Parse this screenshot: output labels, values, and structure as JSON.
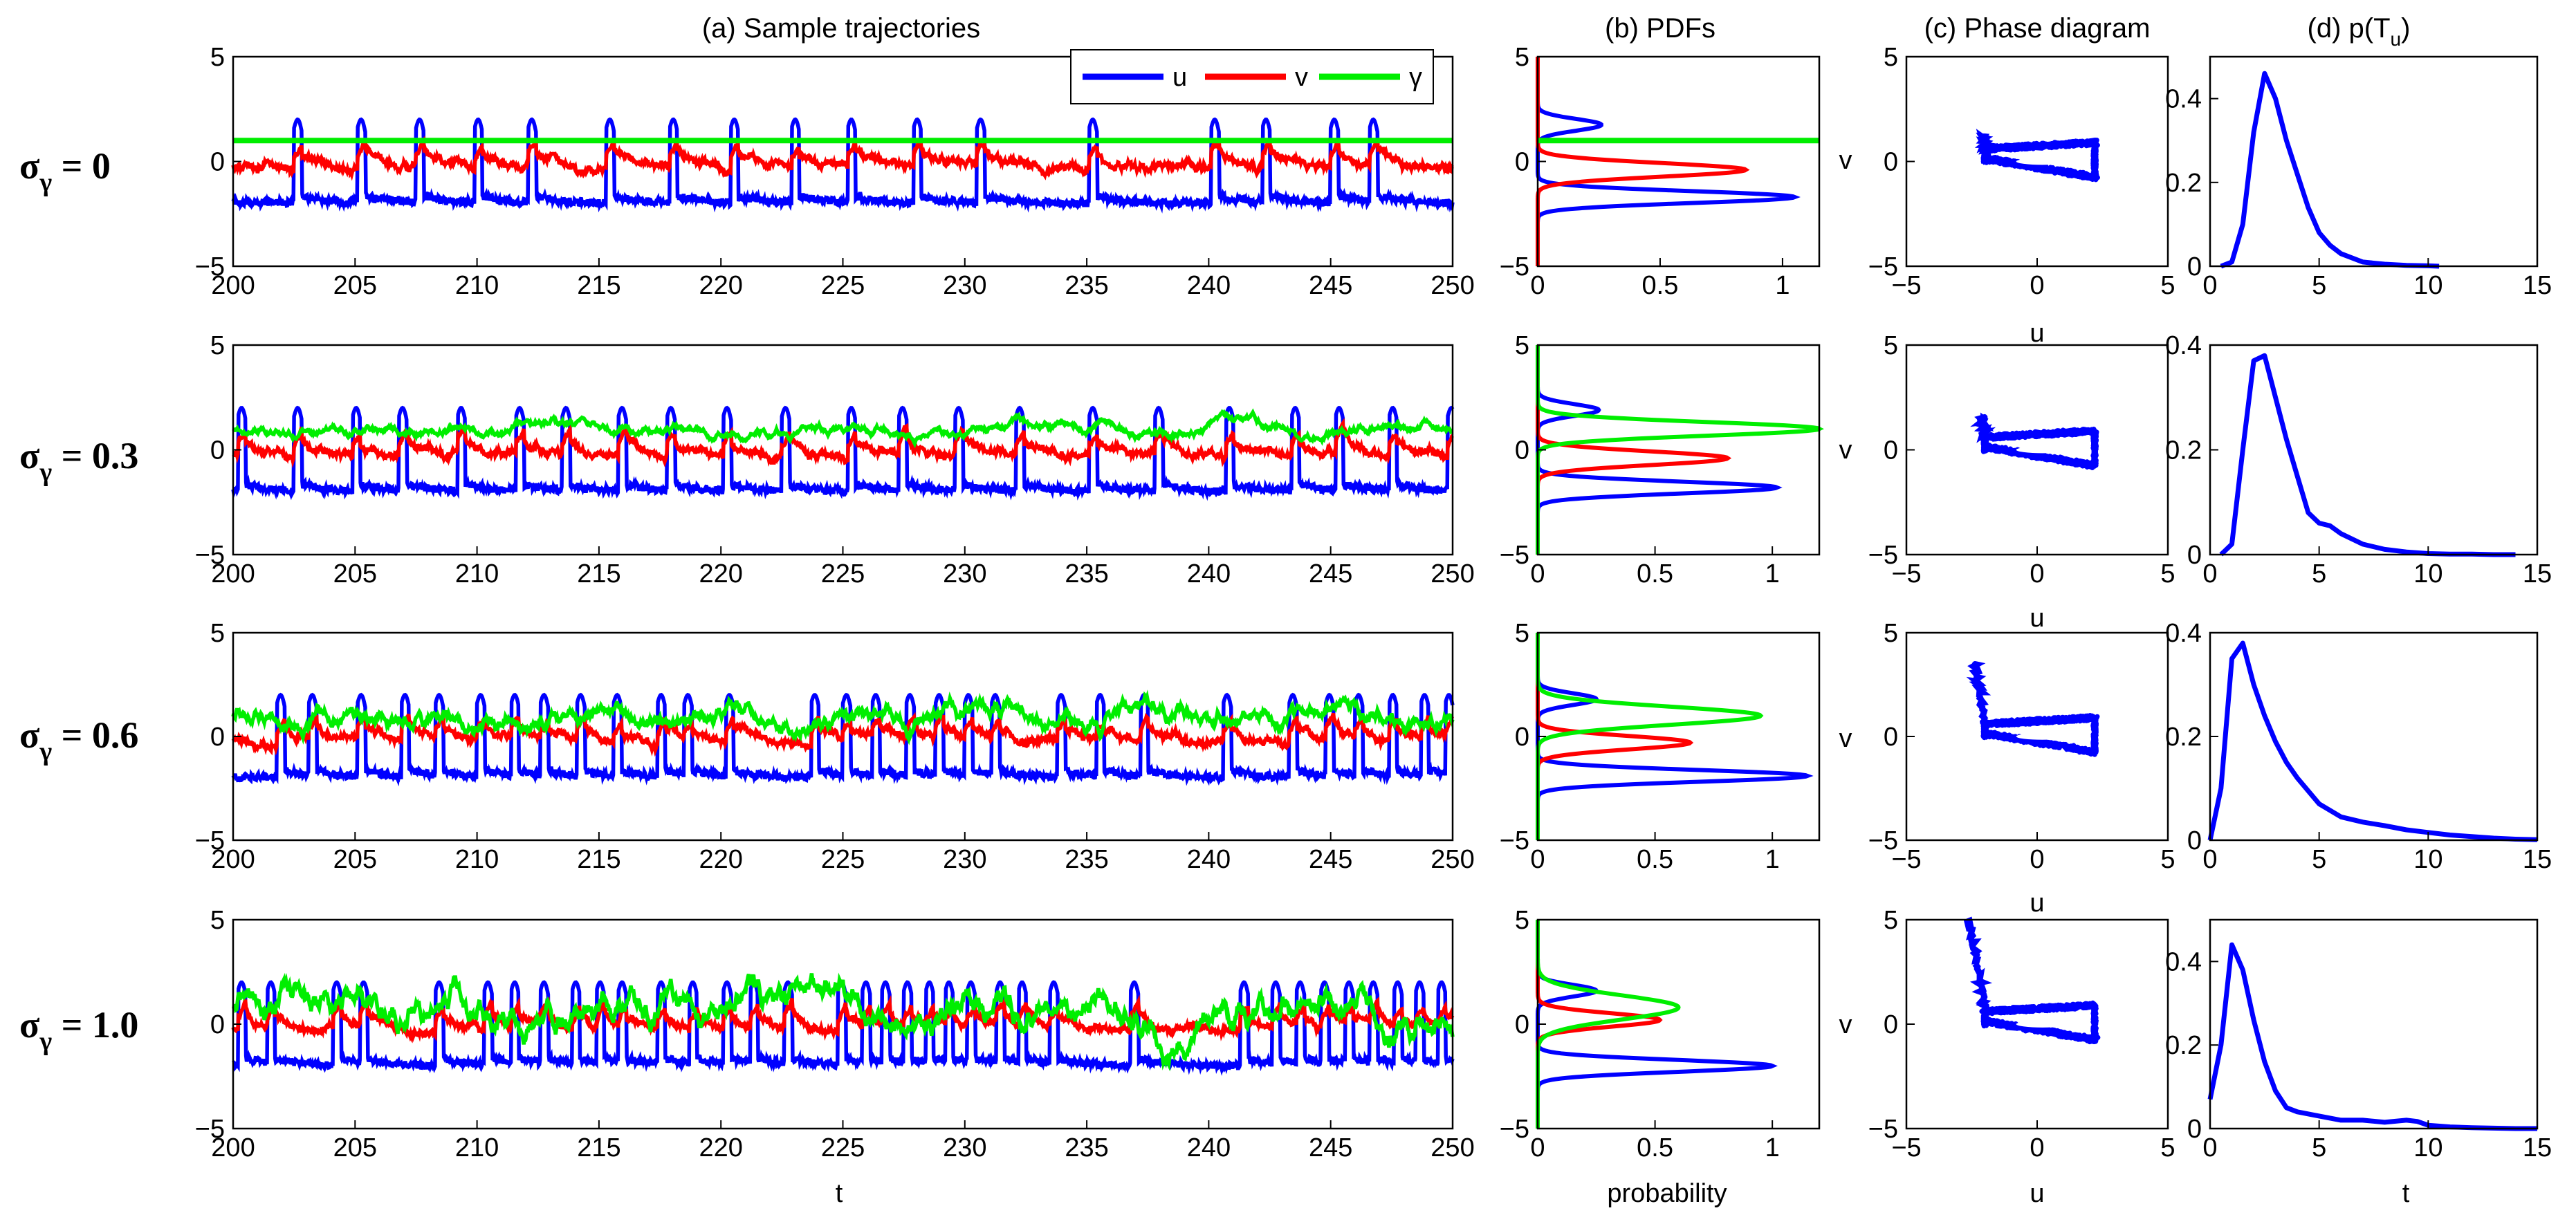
{
  "colors": {
    "u": "#0000ff",
    "v": "#ff0000",
    "gamma": "#00ee00",
    "axis": "#000000"
  },
  "legend": [
    {
      "key": "u",
      "label": "u"
    },
    {
      "key": "v",
      "label": "v"
    },
    {
      "key": "gamma",
      "label": "γ"
    }
  ],
  "column_titles": {
    "a": "(a)  Sample trajectories",
    "b": "(b)  PDFs",
    "c": "(c)  Phase diagram",
    "d_prefix": "(d)  p(T",
    "d_sub": "u",
    "d_suffix": ")"
  },
  "axis_labels": {
    "traj_x": "t",
    "pdf_x": "probability",
    "phase_x": "u",
    "phase_y": "v",
    "dist_x": "t"
  },
  "rows": [
    {
      "label_prefix": "σ",
      "label_sub": "γ",
      "label_value": " = 0",
      "sigma": 0.0
    },
    {
      "label_prefix": "σ",
      "label_sub": "γ",
      "label_value": " = 0.3",
      "sigma": 0.3
    },
    {
      "label_prefix": "σ",
      "label_sub": "γ",
      "label_value": " = 0.6",
      "sigma": 0.6
    },
    {
      "label_prefix": "σ",
      "label_sub": "γ",
      "label_value": " = 1.0",
      "sigma": 1.0
    }
  ],
  "chart_data": [
    {
      "panel": "a",
      "type": "line",
      "title": "(a)  Sample trajectories",
      "xlabel": "t",
      "ylabel": "",
      "xlim": [
        200,
        250
      ],
      "ylim": [
        -5,
        5
      ],
      "xticks": [
        "200",
        "205",
        "210",
        "215",
        "220",
        "225",
        "230",
        "235",
        "240",
        "245",
        "250"
      ],
      "yticks": [
        "-5",
        "0",
        "5"
      ],
      "series": [
        {
          "name": "u",
          "description": "spiking trajectory, baseline about -2, spikes to about +2"
        },
        {
          "name": "v",
          "description": "recovery variable oscillating around 0"
        },
        {
          "name": "γ",
          "description": "constant 1 for σ=0, noisier for larger σ"
        }
      ],
      "spikes_per_row": [
        [
          202.5,
          205.1,
          207.5,
          209.9,
          212.1,
          215.3,
          217.9,
          220.4,
          222.9,
          225.2,
          227.9,
          230.5,
          235.1,
          240.1,
          242.2,
          245.0,
          246.6
        ],
        [
          200.2,
          202.5,
          204.9,
          206.8,
          209.2,
          211.6,
          213.5,
          215.8,
          217.8,
          220.1,
          222.5,
          225.2,
          227.3,
          229.6,
          232.1,
          235.1,
          237.8,
          240.7,
          243.4,
          245.2,
          247.4,
          249.8
        ],
        [
          201.8,
          203.1,
          205.1,
          206.9,
          208.3,
          210.0,
          211.4,
          212.6,
          214.1,
          215.6,
          217.4,
          218.5,
          220.2,
          223.7,
          225.0,
          226.2,
          227.6,
          228.8,
          230.0,
          231.1,
          233.8,
          235.4,
          237.2,
          240.6,
          243.3,
          244.8,
          246.0,
          247.4,
          248.7,
          249.7
        ],
        [
          200.2,
          201.4,
          204.1,
          205.2,
          208.3,
          210.3,
          211.4,
          212.6,
          213.9,
          214.9,
          215.8,
          217.4,
          218.7,
          220.1,
          221.2,
          222.6,
          224.8,
          225.8,
          226.6,
          227.5,
          228.4,
          229.2,
          230.1,
          231.3,
          232.2,
          233.5,
          236.8,
          241.3,
          242.6,
          243.6,
          244.6,
          245.6,
          246.6,
          247.6,
          248.5,
          249.4
        ]
      ]
    },
    {
      "panel": "b",
      "type": "line",
      "title": "(b)  PDFs",
      "xlabel": "probability",
      "ylim": [
        -5,
        5
      ],
      "yticks": [
        "-5",
        "0",
        "5"
      ],
      "xlim_per_row": [
        [
          0,
          1.15
        ],
        [
          0,
          1.2
        ],
        [
          0,
          1.2
        ],
        [
          0,
          1.2
        ]
      ],
      "xticks": [
        "0",
        "0.5",
        "1"
      ],
      "rows": [
        {
          "u_peaks": [
            {
              "y": -1.7,
              "p": 1.05
            },
            {
              "y": 1.75,
              "p": 0.26
            }
          ],
          "v_peak": {
            "y": -0.4,
            "p": 0.85
          },
          "gamma_peak": {
            "y": 1.0,
            "p": 1.15
          }
        },
        {
          "u_peaks": [
            {
              "y": -1.8,
              "p": 1.02
            },
            {
              "y": 1.9,
              "p": 0.26
            }
          ],
          "v_peak": {
            "y": -0.4,
            "p": 0.81
          },
          "gamma_peak": {
            "y": 1.0,
            "p": 1.2
          }
        },
        {
          "u_peaks": [
            {
              "y": -1.9,
              "p": 1.15
            },
            {
              "y": 1.8,
              "p": 0.25
            }
          ],
          "v_peak": {
            "y": -0.3,
            "p": 0.65
          },
          "gamma_peak": {
            "y": 1.0,
            "p": 0.95
          }
        },
        {
          "u_peaks": [
            {
              "y": -2.0,
              "p": 1.0
            },
            {
              "y": 1.6,
              "p": 0.25
            }
          ],
          "v_peak": {
            "y": 0.2,
            "p": 0.52
          },
          "gamma_peak": {
            "y": 0.8,
            "p": 0.6
          }
        }
      ]
    },
    {
      "panel": "c",
      "type": "scatter",
      "title": "(c)  Phase diagram",
      "xlabel": "u",
      "ylabel": "v",
      "xlim": [
        -5,
        5
      ],
      "ylim": [
        -5,
        5
      ],
      "xticks": [
        "-5",
        "0",
        "5"
      ],
      "yticks": [
        "-5",
        "0",
        "5"
      ],
      "rows": [
        {
          "left_top_v": 1.2
        },
        {
          "left_top_v": 1.5
        },
        {
          "left_top_v": 3.5
        },
        {
          "left_top_v": 5.0
        }
      ]
    },
    {
      "panel": "d",
      "type": "line",
      "title": "(d)  p(T_u)",
      "xlabel": "t",
      "xlim": [
        0,
        15
      ],
      "xticks": [
        "0",
        "5",
        "10",
        "15"
      ],
      "rows": [
        {
          "ylim": [
            0,
            0.5
          ],
          "yticks": [
            "0",
            "0.2",
            "0.4"
          ],
          "x": [
            0.5,
            1,
            1.5,
            2,
            2.5,
            3,
            3.5,
            4,
            4.5,
            5,
            5.5,
            6,
            7,
            8,
            9,
            10,
            10.5
          ],
          "y": [
            0,
            0.01,
            0.1,
            0.32,
            0.46,
            0.4,
            0.3,
            0.22,
            0.14,
            0.08,
            0.05,
            0.03,
            0.01,
            0.005,
            0.002,
            0.001,
            0
          ]
        },
        {
          "ylim": [
            0,
            0.4
          ],
          "yticks": [
            "0",
            "0.2",
            "0.4"
          ],
          "x": [
            0.5,
            1,
            1.5,
            2,
            2.5,
            3,
            3.5,
            4,
            4.5,
            5,
            5.5,
            6,
            7,
            8,
            9,
            10,
            11,
            12,
            13,
            14
          ],
          "y": [
            0,
            0.02,
            0.2,
            0.37,
            0.38,
            0.3,
            0.22,
            0.15,
            0.08,
            0.06,
            0.055,
            0.04,
            0.02,
            0.01,
            0.005,
            0.002,
            0.001,
            0.001,
            0,
            0
          ]
        },
        {
          "ylim": [
            0,
            0.4
          ],
          "yticks": [
            "0",
            "0.2",
            "0.4"
          ],
          "x": [
            0,
            0.5,
            1,
            1.5,
            2,
            2.5,
            3,
            3.5,
            4,
            5,
            6,
            7,
            8,
            9,
            10,
            11,
            12,
            13,
            14,
            15
          ],
          "y": [
            0,
            0.1,
            0.35,
            0.38,
            0.3,
            0.24,
            0.19,
            0.15,
            0.12,
            0.07,
            0.045,
            0.035,
            0.028,
            0.02,
            0.015,
            0.01,
            0.007,
            0.004,
            0.002,
            0.001
          ]
        },
        {
          "ylim": [
            0,
            0.5
          ],
          "yticks": [
            "0",
            "0.2",
            "0.4"
          ],
          "x": [
            0,
            0.5,
            1,
            1.5,
            2,
            2.5,
            3,
            3.5,
            4,
            5,
            6,
            7,
            8,
            9,
            9.5,
            10,
            11,
            12,
            13,
            14,
            15
          ],
          "y": [
            0.07,
            0.2,
            0.44,
            0.38,
            0.26,
            0.16,
            0.09,
            0.05,
            0.04,
            0.03,
            0.02,
            0.02,
            0.015,
            0.02,
            0.017,
            0.008,
            0.004,
            0.002,
            0.001,
            0,
            0
          ]
        }
      ]
    }
  ]
}
